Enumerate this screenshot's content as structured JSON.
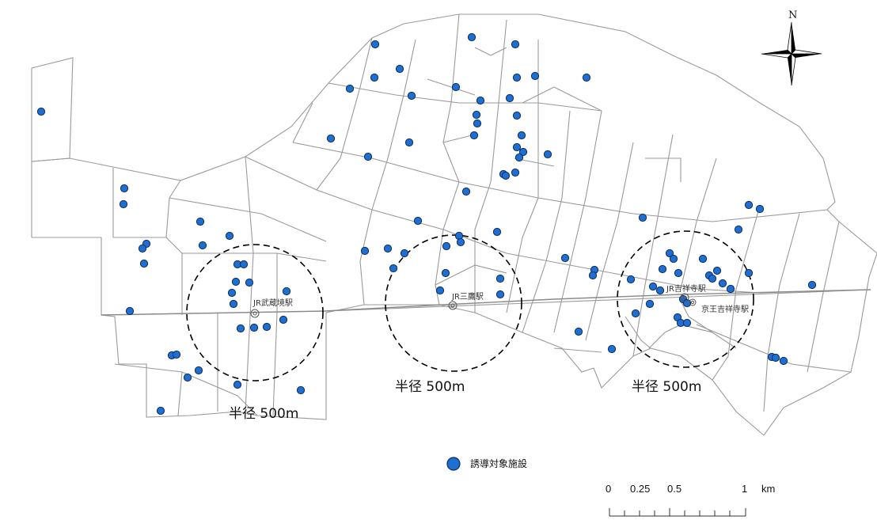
{
  "map": {
    "stations": [
      {
        "name": "JR武蔵境駅"
      },
      {
        "name": "JR三鷹駅"
      },
      {
        "name": "JR吉祥寺駅"
      },
      {
        "name": "京王吉祥寺駅"
      }
    ],
    "radius_labels": [
      "半径 500m",
      "半径 500m",
      "半径 500m"
    ],
    "colors": {
      "facility_fill": "#1e6fd0",
      "facility_stroke": "#0a2a66",
      "boundary": "#9a9a9a",
      "circle": "#000000"
    },
    "facility_count": 110
  },
  "legend": {
    "items": [
      {
        "label": "誘導対象施設",
        "symbol": "blue-circle"
      }
    ]
  },
  "scale_bar": {
    "ticks": [
      "0",
      "0.25",
      "0.5",
      "1"
    ],
    "unit": "km"
  },
  "north_arrow": {
    "label": "N"
  }
}
